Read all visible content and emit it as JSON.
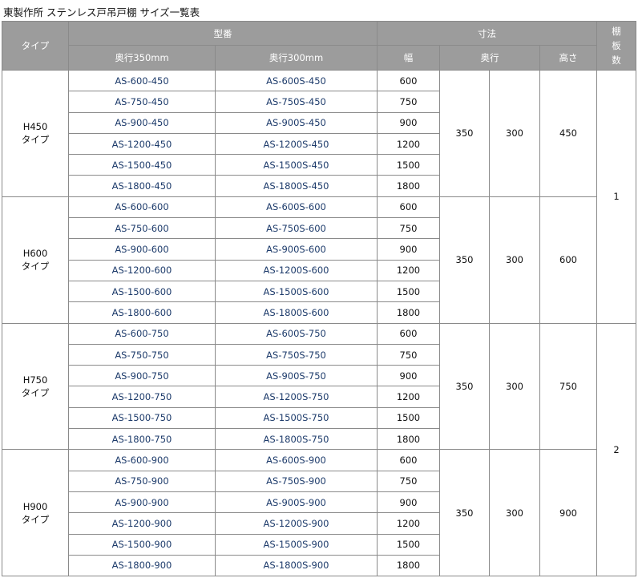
{
  "title": "東製作所 ステンレス戸吊戸棚 サイズ一覧表",
  "header": {
    "type": "タイプ",
    "model": "型番",
    "depth350": "奥行350mm",
    "depth300": "奥行300mm",
    "dims": "寸法",
    "width": "幅",
    "depth": "奥行",
    "height": "高さ",
    "shelves": "棚\n板\n数"
  },
  "groups": [
    {
      "type": "H450\nタイプ",
      "depth350": "350",
      "depth300": "300",
      "height": "450",
      "rows": [
        [
          "AS-600-450",
          "AS-600S-450",
          "600"
        ],
        [
          "AS-750-450",
          "AS-750S-450",
          "750"
        ],
        [
          "AS-900-450",
          "AS-900S-450",
          "900"
        ],
        [
          "AS-1200-450",
          "AS-1200S-450",
          "1200"
        ],
        [
          "AS-1500-450",
          "AS-1500S-450",
          "1500"
        ],
        [
          "AS-1800-450",
          "AS-1800S-450",
          "1800"
        ]
      ]
    },
    {
      "type": "H600\nタイプ",
      "depth350": "350",
      "depth300": "300",
      "height": "600",
      "rows": [
        [
          "AS-600-600",
          "AS-600S-600",
          "600"
        ],
        [
          "AS-750-600",
          "AS-750S-600",
          "750"
        ],
        [
          "AS-900-600",
          "AS-900S-600",
          "900"
        ],
        [
          "AS-1200-600",
          "AS-1200S-600",
          "1200"
        ],
        [
          "AS-1500-600",
          "AS-1500S-600",
          "1500"
        ],
        [
          "AS-1800-600",
          "AS-1800S-600",
          "1800"
        ]
      ]
    },
    {
      "type": "H750\nタイプ",
      "depth350": "350",
      "depth300": "300",
      "height": "750",
      "rows": [
        [
          "AS-600-750",
          "AS-600S-750",
          "600"
        ],
        [
          "AS-750-750",
          "AS-750S-750",
          "750"
        ],
        [
          "AS-900-750",
          "AS-900S-750",
          "900"
        ],
        [
          "AS-1200-750",
          "AS-1200S-750",
          "1200"
        ],
        [
          "AS-1500-750",
          "AS-1500S-750",
          "1500"
        ],
        [
          "AS-1800-750",
          "AS-1800S-750",
          "1800"
        ]
      ]
    },
    {
      "type": "H900\nタイプ",
      "depth350": "350",
      "depth300": "300",
      "height": "900",
      "rows": [
        [
          "AS-600-900",
          "AS-600S-900",
          "600"
        ],
        [
          "AS-750-900",
          "AS-750S-900",
          "750"
        ],
        [
          "AS-900-900",
          "AS-900S-900",
          "900"
        ],
        [
          "AS-1200-900",
          "AS-1200S-900",
          "1200"
        ],
        [
          "AS-1500-900",
          "AS-1500S-900",
          "1500"
        ],
        [
          "AS-1800-900",
          "AS-1800S-900",
          "1800"
        ]
      ]
    }
  ],
  "shelves": [
    "1",
    "2"
  ]
}
